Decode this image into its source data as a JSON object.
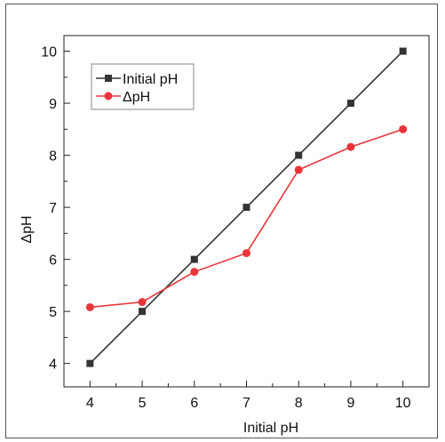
{
  "chart_data": {
    "type": "line",
    "xlabel": "Initial pH",
    "ylabel": "ΔpH",
    "x": [
      4,
      5,
      6,
      7,
      8,
      9,
      10
    ],
    "xlim": [
      3.5,
      10.5
    ],
    "ylim": [
      3.55,
      10.3
    ],
    "xticks": [
      4,
      5,
      6,
      7,
      8,
      9,
      10
    ],
    "yticks": [
      4,
      5,
      6,
      7,
      8,
      9,
      10
    ],
    "grid": false,
    "legend_position": "top-left",
    "series": [
      {
        "name": "Initial pH",
        "color": "#333333",
        "marker": "square",
        "values": [
          4,
          5,
          6,
          7,
          8,
          9,
          10
        ]
      },
      {
        "name": "ΔpH",
        "color": "#e8353b",
        "marker": "circle",
        "values": [
          5.08,
          5.18,
          5.76,
          6.12,
          7.72,
          8.16,
          8.5
        ]
      }
    ]
  }
}
